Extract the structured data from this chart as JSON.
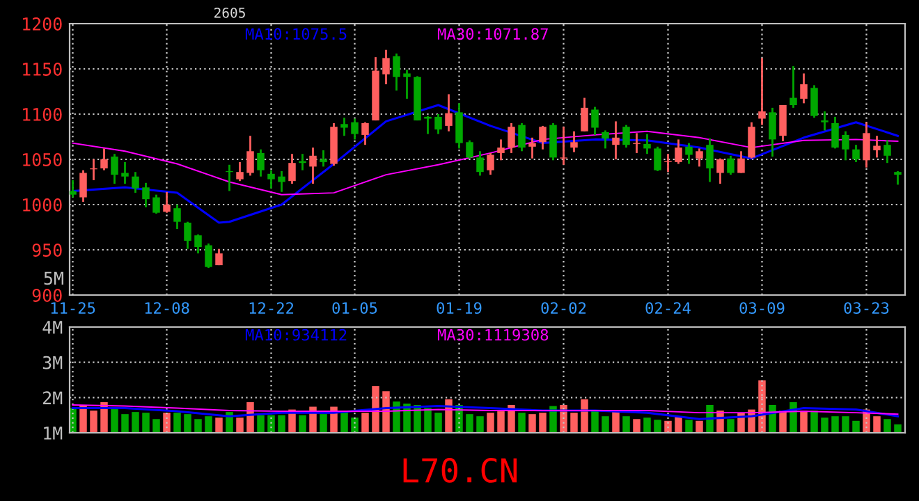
{
  "chart_data": [
    {
      "type": "candlestick",
      "categories": [
        "11-25",
        null,
        null,
        null,
        null,
        null,
        null,
        null,
        null,
        "12-08",
        null,
        null,
        null,
        null,
        null,
        null,
        null,
        null,
        null,
        "12-22",
        null,
        null,
        null,
        null,
        null,
        null,
        null,
        "01-05",
        null,
        null,
        null,
        null,
        null,
        null,
        null,
        null,
        null,
        "01-19",
        null,
        null,
        null,
        null,
        null,
        null,
        null,
        null,
        null,
        "02-02",
        null,
        null,
        null,
        null,
        null,
        null,
        null,
        null,
        null,
        "02-24",
        null,
        null,
        null,
        null,
        null,
        null,
        null,
        null,
        "03-09",
        null,
        null,
        null,
        null,
        null,
        null,
        null,
        null,
        null,
        "03-23",
        null,
        null,
        null
      ],
      "ohlc": [
        [
          1015,
          1027,
          1008,
          1011
        ],
        [
          1008,
          1038,
          1003,
          1035
        ],
        [
          1039,
          1050,
          1027,
          1040
        ],
        [
          1040,
          1062,
          1038,
          1050
        ],
        [
          1053,
          1056,
          1023,
          1033
        ],
        [
          1035,
          1047,
          1023,
          1031
        ],
        [
          1031,
          1036,
          1013,
          1018
        ],
        [
          1019,
          1024,
          997,
          1006
        ],
        [
          1008,
          1011,
          990,
          991
        ],
        [
          992,
          1014,
          991,
          1000
        ],
        [
          996,
          1000,
          973,
          981
        ],
        [
          980,
          981,
          951,
          960
        ],
        [
          966,
          967,
          946,
          953
        ],
        [
          955,
          957,
          930,
          931
        ],
        [
          933,
          951,
          933,
          946
        ],
        [
          1037,
          1044,
          1015,
          1036
        ],
        [
          1028,
          1047,
          1026,
          1036
        ],
        [
          1035,
          1076,
          1032,
          1059
        ],
        [
          1057,
          1061,
          1031,
          1038
        ],
        [
          1034,
          1038,
          1018,
          1028
        ],
        [
          1031,
          1037,
          1014,
          1025
        ],
        [
          1026,
          1056,
          1023,
          1046
        ],
        [
          1048,
          1056,
          1038,
          1046
        ],
        [
          1042,
          1063,
          1023,
          1054
        ],
        [
          1050,
          1060,
          1042,
          1047
        ],
        [
          1045,
          1090,
          1043,
          1086
        ],
        [
          1089,
          1096,
          1076,
          1085
        ],
        [
          1091,
          1095,
          1072,
          1078
        ],
        [
          1077,
          1091,
          1066,
          1090
        ],
        [
          1093,
          1163,
          1093,
          1148
        ],
        [
          1144,
          1171,
          1133,
          1162
        ],
        [
          1164,
          1167,
          1126,
          1141
        ],
        [
          1145,
          1149,
          1117,
          1141
        ],
        [
          1141,
          1142,
          1093,
          1093
        ],
        [
          1097,
          1098,
          1078,
          1095
        ],
        [
          1097,
          1100,
          1078,
          1083
        ],
        [
          1087,
          1122,
          1081,
          1101
        ],
        [
          1102,
          1112,
          1062,
          1068
        ],
        [
          1069,
          1071,
          1051,
          1052
        ],
        [
          1052,
          1059,
          1032,
          1036
        ],
        [
          1038,
          1057,
          1033,
          1055
        ],
        [
          1057,
          1072,
          1049,
          1063
        ],
        [
          1063,
          1090,
          1057,
          1086
        ],
        [
          1088,
          1090,
          1059,
          1063
        ],
        [
          1064,
          1074,
          1051,
          1068
        ],
        [
          1069,
          1087,
          1061,
          1086
        ],
        [
          1088,
          1090,
          1049,
          1052
        ],
        [
          1051,
          1086,
          1044,
          1052
        ],
        [
          1063,
          1081,
          1058,
          1069
        ],
        [
          1081,
          1118,
          1081,
          1107
        ],
        [
          1105,
          1108,
          1077,
          1085
        ],
        [
          1080,
          1082,
          1062,
          1073
        ],
        [
          1066,
          1092,
          1050,
          1074
        ],
        [
          1086,
          1088,
          1063,
          1066
        ],
        [
          1067,
          1079,
          1057,
          1068
        ],
        [
          1067,
          1078,
          1056,
          1062
        ],
        [
          1062,
          1064,
          1037,
          1038
        ],
        [
          1047,
          1056,
          1036,
          1048
        ],
        [
          1047,
          1072,
          1045,
          1063
        ],
        [
          1064,
          1068,
          1045,
          1055
        ],
        [
          1051,
          1062,
          1042,
          1059
        ],
        [
          1066,
          1073,
          1025,
          1040
        ],
        [
          1035,
          1051,
          1023,
          1050
        ],
        [
          1051,
          1054,
          1033,
          1035
        ],
        [
          1035,
          1059,
          1035,
          1051
        ],
        [
          1052,
          1091,
          1051,
          1086
        ],
        [
          1095,
          1162,
          1088,
          1103
        ],
        [
          1102,
          1107,
          1053,
          1072
        ],
        [
          1076,
          1110,
          1070,
          1110
        ],
        [
          1118,
          1153,
          1107,
          1110
        ],
        [
          1117,
          1145,
          1112,
          1133
        ],
        [
          1129,
          1132,
          1096,
          1098
        ],
        [
          1093,
          1103,
          1082,
          1091
        ],
        [
          1090,
          1097,
          1062,
          1063
        ],
        [
          1077,
          1081,
          1049,
          1061
        ],
        [
          1061,
          1066,
          1047,
          1050
        ],
        [
          1049,
          1091,
          1041,
          1079
        ],
        [
          1060,
          1076,
          1052,
          1065
        ],
        [
          1066,
          1071,
          1046,
          1054
        ],
        [
          1036,
          1037,
          1022,
          1033
        ]
      ],
      "colors": [
        "#00a800",
        "#ff5f5f",
        "#ff5f5f",
        "#ff5f5f",
        "#00a800",
        "#00a800",
        "#00a800",
        "#00a800",
        "#00a800",
        "#ff5f5f",
        "#00a800",
        "#00a800",
        "#00a800",
        "#00a800",
        "#ff5f5f",
        "#00a800",
        "#ff5f5f",
        "#ff5f5f",
        "#00a800",
        "#00a800",
        "#00a800",
        "#ff5f5f",
        "#00a800",
        "#ff5f5f",
        "#00a800",
        "#ff5f5f",
        "#00a800",
        "#00a800",
        "#ff5f5f",
        "#ff5f5f",
        "#ff5f5f",
        "#00a800",
        "#00a800",
        "#00a800",
        "#00a800",
        "#00a800",
        "#ff5f5f",
        "#00a800",
        "#00a800",
        "#00a800",
        "#ff5f5f",
        "#ff5f5f",
        "#ff5f5f",
        "#00a800",
        "#ff5f5f",
        "#ff5f5f",
        "#00a800",
        "#ff5f5f",
        "#ff5f5f",
        "#ff5f5f",
        "#00a800",
        "#00a800",
        "#ff5f5f",
        "#00a800",
        "#ff5f5f",
        "#00a800",
        "#00a800",
        "#ff5f5f",
        "#ff5f5f",
        "#00a800",
        "#ff5f5f",
        "#00a800",
        "#ff5f5f",
        "#00a800",
        "#ff5f5f",
        "#ff5f5f",
        "#ff5f5f",
        "#00a800",
        "#ff5f5f",
        "#00a800",
        "#ff5f5f",
        "#00a800",
        "#00a800",
        "#00a800",
        "#00a800",
        "#00a800",
        "#ff5f5f",
        "#ff5f5f",
        "#00a800",
        "#00a800"
      ],
      "series": [
        {
          "type": "line",
          "name": "MA10:1075.5",
          "color": "#0000ff",
          "values": [
            1015,
            null,
            null,
            null,
            null,
            1019,
            null,
            null,
            null,
            null,
            1013,
            null,
            null,
            null,
            980,
            981,
            null,
            null,
            null,
            null,
            1000,
            null,
            null,
            null,
            null,
            1045,
            null,
            null,
            null,
            null,
            1092,
            null,
            null,
            null,
            null,
            1110,
            null,
            null,
            null,
            null,
            1087,
            null,
            null,
            null,
            null,
            1068,
            null,
            null,
            null,
            null,
            1072,
            null,
            null,
            null,
            null,
            1071,
            null,
            null,
            null,
            null,
            1063,
            null,
            null,
            null,
            null,
            1051,
            null,
            null,
            null,
            null,
            1074,
            null,
            null,
            null,
            null,
            1091,
            null,
            null,
            null,
            1076
          ]
        },
        {
          "type": "line",
          "name": "MA30:1071.87",
          "color": "#ff00ff",
          "values": [
            1068,
            null,
            null,
            null,
            null,
            1059,
            null,
            null,
            null,
            null,
            1045,
            null,
            null,
            null,
            null,
            1025,
            null,
            null,
            null,
            null,
            1011,
            null,
            null,
            null,
            null,
            1013,
            null,
            null,
            null,
            null,
            1033,
            null,
            null,
            null,
            null,
            1044,
            null,
            null,
            null,
            null,
            1057,
            null,
            null,
            null,
            null,
            1072,
            null,
            null,
            null,
            null,
            1077,
            null,
            null,
            null,
            null,
            1081,
            null,
            null,
            null,
            null,
            1074,
            null,
            null,
            null,
            null,
            1063,
            null,
            null,
            null,
            null,
            1071,
            null,
            null,
            null,
            null,
            1072,
            null,
            null,
            null,
            1070
          ]
        }
      ],
      "ylim": [
        900,
        1200
      ],
      "yticks": [
        900,
        950,
        1000,
        1050,
        1100,
        1150,
        1200
      ],
      "grid": true,
      "legend": false,
      "annotations": [
        "2605",
        "5M"
      ]
    },
    {
      "type": "bar",
      "categories": [
        null,
        null,
        null,
        null,
        null,
        null,
        null,
        null,
        null,
        null,
        null,
        null,
        null,
        null,
        null,
        null,
        null,
        null,
        null,
        null,
        null,
        null,
        null,
        null,
        null,
        null,
        null,
        null,
        null,
        null,
        null,
        null,
        null,
        null,
        null,
        null,
        null,
        null,
        null,
        null,
        null,
        null,
        null,
        null,
        null,
        null,
        null,
        null,
        null,
        null,
        null,
        null,
        null,
        null,
        null,
        null,
        null,
        null,
        null,
        null,
        null,
        null,
        null,
        null,
        null,
        null,
        null,
        null,
        null,
        null,
        null,
        null,
        null,
        null,
        null,
        null,
        null,
        null,
        null,
        null
      ],
      "series": [
        {
          "type": "bar",
          "values": [
            1.7,
            1.79,
            1.63,
            1.87,
            1.67,
            1.53,
            1.59,
            1.57,
            1.39,
            1.57,
            1.57,
            1.53,
            1.39,
            1.47,
            1.43,
            1.59,
            1.43,
            1.87,
            1.5,
            1.5,
            1.5,
            1.66,
            1.5,
            1.74,
            1.53,
            1.74,
            1.63,
            1.43,
            1.57,
            2.32,
            2.18,
            1.89,
            1.83,
            1.79,
            1.7,
            1.57,
            1.95,
            1.79,
            1.53,
            1.47,
            1.57,
            1.61,
            1.79,
            1.57,
            1.53,
            1.57,
            1.76,
            1.79,
            1.57,
            1.95,
            1.63,
            1.47,
            1.61,
            1.47,
            1.39,
            1.43,
            1.37,
            1.34,
            1.47,
            1.37,
            1.34,
            1.79,
            1.63,
            1.39,
            1.57,
            1.66,
            2.49,
            1.79,
            1.63,
            1.87,
            1.63,
            1.63,
            1.43,
            1.47,
            1.47,
            1.34,
            1.66,
            1.47,
            1.39,
            1.24
          ],
          "colors": [
            "#00a800",
            "#ff5f5f",
            "#ff5f5f",
            "#ff5f5f",
            "#00a800",
            "#00a800",
            "#00a800",
            "#00a800",
            "#00a800",
            "#ff5f5f",
            "#00a800",
            "#00a800",
            "#00a800",
            "#00a800",
            "#ff5f5f",
            "#00a800",
            "#ff5f5f",
            "#ff5f5f",
            "#00a800",
            "#00a800",
            "#00a800",
            "#ff5f5f",
            "#00a800",
            "#ff5f5f",
            "#00a800",
            "#ff5f5f",
            "#00a800",
            "#00a800",
            "#ff5f5f",
            "#ff5f5f",
            "#ff5f5f",
            "#00a800",
            "#00a800",
            "#00a800",
            "#00a800",
            "#00a800",
            "#ff5f5f",
            "#00a800",
            "#00a800",
            "#00a800",
            "#ff5f5f",
            "#ff5f5f",
            "#ff5f5f",
            "#00a800",
            "#ff5f5f",
            "#ff5f5f",
            "#00a800",
            "#ff5f5f",
            "#ff5f5f",
            "#ff5f5f",
            "#00a800",
            "#00a800",
            "#ff5f5f",
            "#00a800",
            "#ff5f5f",
            "#00a800",
            "#00a800",
            "#ff5f5f",
            "#ff5f5f",
            "#00a800",
            "#ff5f5f",
            "#00a800",
            "#ff5f5f",
            "#00a800",
            "#ff5f5f",
            "#ff5f5f",
            "#ff5f5f",
            "#00a800",
            "#ff5f5f",
            "#00a800",
            "#ff5f5f",
            "#00a800",
            "#00a800",
            "#00a800",
            "#00a800",
            "#00a800",
            "#ff5f5f",
            "#ff5f5f",
            "#00a800",
            "#00a800"
          ]
        },
        {
          "type": "line",
          "name": "MA10:934112",
          "color": "#0000ff",
          "values": [
            1.7,
            null,
            null,
            null,
            null,
            1.7,
            null,
            null,
            null,
            null,
            1.61,
            null,
            null,
            null,
            null,
            1.47,
            null,
            null,
            null,
            null,
            1.57,
            null,
            null,
            null,
            null,
            1.57,
            null,
            null,
            null,
            null,
            1.7,
            null,
            null,
            null,
            null,
            1.76,
            null,
            null,
            null,
            null,
            1.7,
            null,
            null,
            null,
            null,
            1.63,
            null,
            null,
            null,
            null,
            1.63,
            null,
            null,
            null,
            null,
            1.57,
            null,
            null,
            null,
            null,
            1.39,
            null,
            null,
            null,
            null,
            1.47,
            null,
            null,
            null,
            null,
            1.7,
            null,
            null,
            null,
            null,
            1.66,
            null,
            null,
            null,
            1.47
          ]
        },
        {
          "type": "line",
          "name": "MA30:1119308",
          "color": "#ff00ff",
          "values": [
            1.79,
            null,
            null,
            null,
            null,
            1.76,
            null,
            null,
            null,
            null,
            1.7,
            null,
            null,
            null,
            null,
            1.63,
            null,
            null,
            null,
            null,
            1.61,
            null,
            null,
            null,
            null,
            1.61,
            null,
            null,
            null,
            null,
            1.61,
            null,
            null,
            null,
            null,
            1.66,
            null,
            null,
            null,
            null,
            1.63,
            null,
            null,
            null,
            null,
            1.63,
            null,
            null,
            null,
            null,
            1.63,
            null,
            null,
            null,
            null,
            1.63,
            null,
            null,
            null,
            null,
            1.57,
            null,
            null,
            null,
            null,
            1.57,
            null,
            null,
            null,
            null,
            1.61,
            null,
            null,
            null,
            null,
            1.57,
            null,
            null,
            null,
            1.53
          ]
        }
      ],
      "ylim": [
        1,
        4
      ],
      "yticks": [
        {
          "value": 1,
          "label": "1M"
        },
        {
          "value": 2,
          "label": "2M"
        },
        {
          "value": 3,
          "label": "3M"
        },
        {
          "value": 4,
          "label": "4M"
        }
      ],
      "grid": true,
      "legend": false,
      "annotations": [
        "L70.CN"
      ]
    }
  ]
}
